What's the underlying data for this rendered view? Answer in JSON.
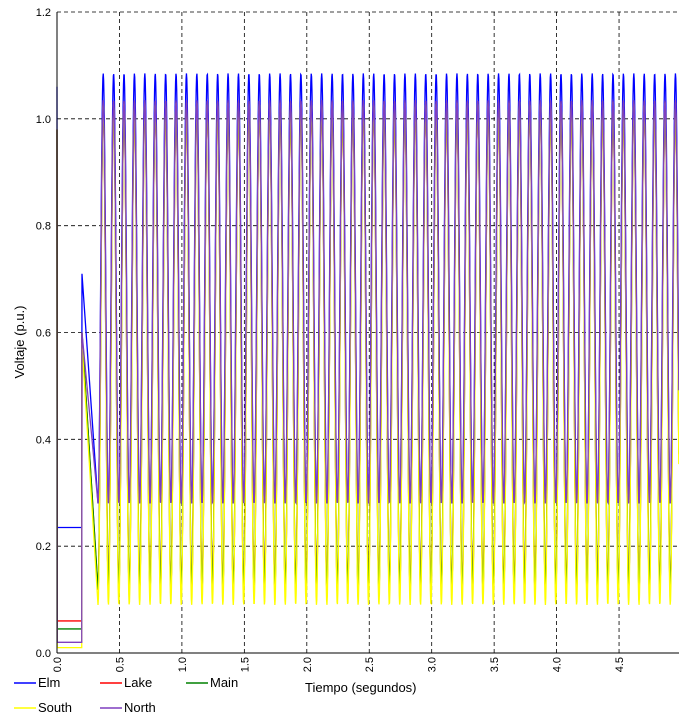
{
  "chart_data": {
    "type": "line",
    "title": "",
    "xlabel": "Tiempo (segundos)",
    "ylabel": "Voltaje (p.u.)",
    "xlim": [
      0.0,
      4.98
    ],
    "ylim": [
      0.0,
      1.2
    ],
    "x_ticks": [
      "0.0",
      "0.5",
      "1.0",
      "1.5",
      "2.0",
      "2.5",
      "3.0",
      "3.5",
      "4.0",
      "4.5"
    ],
    "y_ticks": [
      "0.0",
      "0.2",
      "0.4",
      "0.6",
      "0.8",
      "1.0",
      "1.2"
    ],
    "grid": true,
    "legend_position": "bottom-left",
    "oscillation": {
      "start_time": 0.37,
      "period": 0.0833,
      "fault_clear_time": 0.2
    },
    "series": [
      {
        "name": "Elm",
        "color": "#0000ff",
        "prefault": 0.235,
        "fault_level": 0.235,
        "peak": 1.085,
        "trough": 0.28,
        "init_spike": 1.06,
        "post_fault_peak": 0.71
      },
      {
        "name": "Lake",
        "color": "#ff0000",
        "prefault": 0.06,
        "fault_level": 0.06,
        "peak": 1.025,
        "trough": 0.118,
        "init_spike": 0.98,
        "post_fault_peak": 0.6
      },
      {
        "name": "Main",
        "color": "#008000",
        "prefault": 0.045,
        "fault_level": 0.045,
        "peak": 1.03,
        "trough": 0.12,
        "init_spike": 0.98,
        "post_fault_peak": 0.6
      },
      {
        "name": "South",
        "color": "#ffff00",
        "prefault": 0.01,
        "fault_level": 0.01,
        "peak": 1.03,
        "trough": 0.09,
        "init_spike": 0.98,
        "post_fault_peak": 0.58
      },
      {
        "name": "North",
        "color": "#7f3fbf",
        "prefault": 0.02,
        "fault_level": 0.02,
        "peak": 1.035,
        "trough": 0.28,
        "init_spike": 0.98,
        "post_fault_peak": 0.6
      }
    ]
  }
}
